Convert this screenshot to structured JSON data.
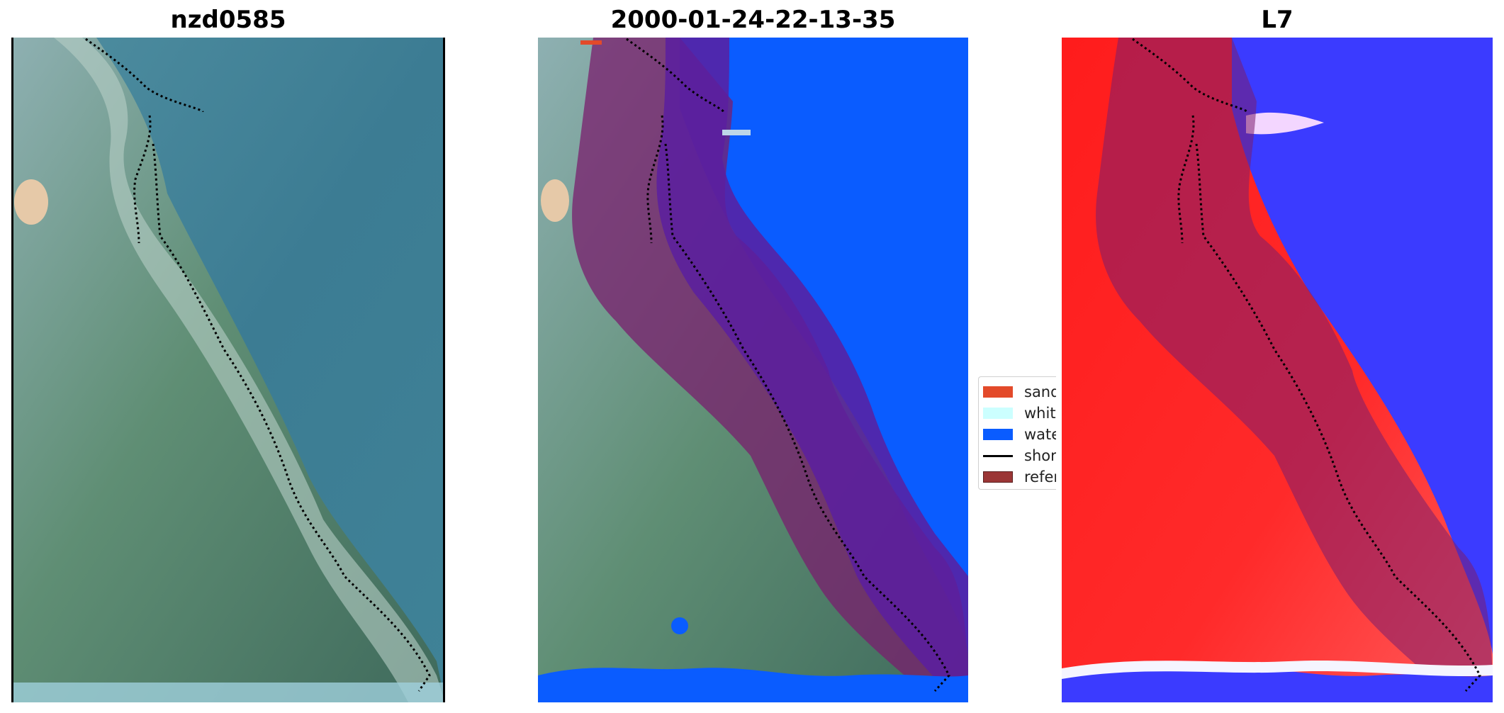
{
  "panels": {
    "left": {
      "title": "nzd0585"
    },
    "middle": {
      "title": "2000-01-24-22-13-35"
    },
    "right": {
      "title": "L7"
    }
  },
  "legend": {
    "items": [
      {
        "label": "sand",
        "color": "#e34a2a"
      },
      {
        "label": "white",
        "color": "#ccffff"
      },
      {
        "label": "water",
        "color": "#0a5cff"
      },
      {
        "label": "shore",
        "color": "#000000"
      },
      {
        "label": "refer",
        "color": "#9b3636"
      }
    ]
  },
  "colors": {
    "water": "#0a5cff",
    "reference": "#7a1e6e",
    "land_red": "#ff1c1c",
    "water_blue": "#3b3bff"
  }
}
